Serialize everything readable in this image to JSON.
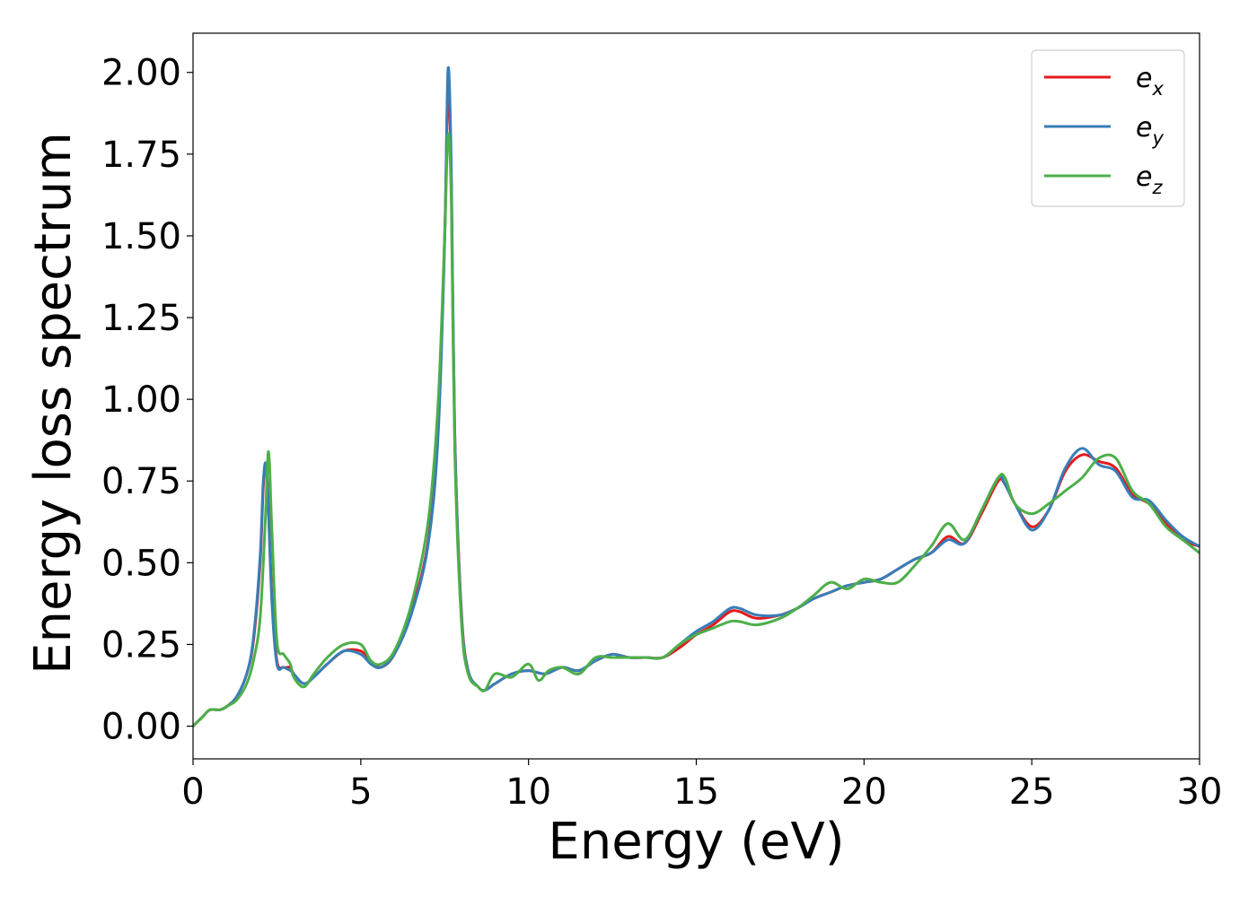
{
  "chart_data": {
    "type": "line",
    "title": "",
    "xlabel": "Energy (eV)",
    "ylabel": "Energy loss spectrum",
    "xlim": [
      0,
      30
    ],
    "ylim": [
      -0.1,
      2.12
    ],
    "xticks": [
      0,
      5,
      10,
      15,
      20,
      25,
      30
    ],
    "xtick_labels": [
      "0",
      "5",
      "10",
      "15",
      "20",
      "25",
      "30"
    ],
    "yticks": [
      0,
      0.25,
      0.5,
      0.75,
      1.0,
      1.25,
      1.5,
      1.75,
      2.0
    ],
    "ytick_labels": [
      "0.00",
      "0.25",
      "0.50",
      "0.75",
      "1.00",
      "1.25",
      "1.50",
      "1.75",
      "2.00"
    ],
    "grid": false,
    "legend_position": "upper right",
    "series": [
      {
        "name": "e_x",
        "label_base": "e",
        "label_sub": "x",
        "color": "#e41a1c",
        "x": [
          0,
          0.3,
          0.5,
          0.8,
          1.0,
          1.3,
          1.6,
          1.8,
          2.0,
          2.1,
          2.2,
          2.35,
          2.5,
          2.7,
          2.9,
          3.0,
          3.3,
          3.6,
          4.0,
          4.5,
          5.0,
          5.3,
          5.6,
          6.0,
          6.5,
          7.0,
          7.3,
          7.5,
          7.6,
          7.7,
          7.8,
          8.0,
          8.2,
          8.5,
          8.7,
          9.0,
          9.5,
          10.0,
          10.5,
          11.0,
          11.5,
          12.0,
          12.5,
          13.0,
          13.5,
          14.0,
          14.5,
          15.0,
          15.5,
          16.0,
          16.3,
          16.8,
          17.5,
          18.0,
          18.5,
          19.0,
          19.5,
          20.0,
          20.5,
          21.0,
          21.5,
          22.0,
          22.5,
          23.0,
          23.5,
          24.0,
          24.2,
          24.5,
          25.0,
          25.5,
          26.0,
          26.5,
          27.0,
          27.5,
          28.0,
          28.5,
          29.0,
          29.5,
          30.0
        ],
        "y": [
          0.0,
          0.03,
          0.05,
          0.05,
          0.06,
          0.09,
          0.16,
          0.26,
          0.5,
          0.74,
          0.78,
          0.4,
          0.2,
          0.18,
          0.18,
          0.16,
          0.13,
          0.15,
          0.19,
          0.23,
          0.23,
          0.2,
          0.18,
          0.22,
          0.35,
          0.56,
          0.9,
          1.5,
          1.95,
          1.65,
          0.9,
          0.35,
          0.17,
          0.12,
          0.11,
          0.13,
          0.16,
          0.17,
          0.16,
          0.18,
          0.17,
          0.2,
          0.22,
          0.21,
          0.21,
          0.21,
          0.24,
          0.28,
          0.31,
          0.35,
          0.35,
          0.33,
          0.34,
          0.36,
          0.39,
          0.41,
          0.43,
          0.44,
          0.45,
          0.48,
          0.51,
          0.53,
          0.58,
          0.56,
          0.65,
          0.75,
          0.74,
          0.68,
          0.61,
          0.66,
          0.78,
          0.83,
          0.81,
          0.79,
          0.71,
          0.68,
          0.62,
          0.57,
          0.55
        ]
      },
      {
        "name": "e_y",
        "label_base": "e",
        "label_sub": "y",
        "color": "#377eb8",
        "x": [
          0,
          0.3,
          0.5,
          0.8,
          1.0,
          1.3,
          1.6,
          1.8,
          2.0,
          2.1,
          2.2,
          2.35,
          2.5,
          2.7,
          2.9,
          3.0,
          3.3,
          3.6,
          4.0,
          4.5,
          5.0,
          5.3,
          5.6,
          6.0,
          6.5,
          7.0,
          7.3,
          7.5,
          7.6,
          7.7,
          7.8,
          8.0,
          8.2,
          8.5,
          8.7,
          9.0,
          9.5,
          10.0,
          10.5,
          11.0,
          11.5,
          12.0,
          12.5,
          13.0,
          13.5,
          14.0,
          14.5,
          15.0,
          15.5,
          16.0,
          16.3,
          16.8,
          17.5,
          18.0,
          18.5,
          19.0,
          19.5,
          20.0,
          20.5,
          21.0,
          21.5,
          22.0,
          22.5,
          23.0,
          23.5,
          24.0,
          24.2,
          24.5,
          25.0,
          25.5,
          26.0,
          26.5,
          27.0,
          27.5,
          28.0,
          28.5,
          29.0,
          29.5,
          30.0
        ],
        "y": [
          0.0,
          0.03,
          0.05,
          0.05,
          0.06,
          0.09,
          0.16,
          0.27,
          0.52,
          0.76,
          0.77,
          0.38,
          0.19,
          0.18,
          0.17,
          0.16,
          0.13,
          0.15,
          0.19,
          0.23,
          0.22,
          0.19,
          0.18,
          0.22,
          0.34,
          0.55,
          0.88,
          1.48,
          2.01,
          1.7,
          0.9,
          0.34,
          0.17,
          0.12,
          0.11,
          0.13,
          0.16,
          0.17,
          0.16,
          0.18,
          0.17,
          0.2,
          0.22,
          0.21,
          0.21,
          0.21,
          0.25,
          0.29,
          0.32,
          0.36,
          0.36,
          0.34,
          0.34,
          0.36,
          0.39,
          0.41,
          0.43,
          0.44,
          0.45,
          0.48,
          0.51,
          0.53,
          0.57,
          0.56,
          0.66,
          0.76,
          0.74,
          0.68,
          0.6,
          0.66,
          0.79,
          0.85,
          0.8,
          0.78,
          0.7,
          0.69,
          0.63,
          0.58,
          0.55
        ]
      },
      {
        "name": "e_z",
        "label_base": "e",
        "label_sub": "z",
        "color": "#4daf4a",
        "x": [
          0,
          0.3,
          0.5,
          0.8,
          1.0,
          1.3,
          1.6,
          1.8,
          2.0,
          2.15,
          2.25,
          2.35,
          2.5,
          2.7,
          2.9,
          3.0,
          3.3,
          3.6,
          4.0,
          4.5,
          5.0,
          5.3,
          5.6,
          6.0,
          6.5,
          7.0,
          7.3,
          7.5,
          7.6,
          7.7,
          7.8,
          8.0,
          8.2,
          8.5,
          8.7,
          9.0,
          9.5,
          10.0,
          10.3,
          10.6,
          11.0,
          11.5,
          12.0,
          12.5,
          13.0,
          13.5,
          14.0,
          14.5,
          15.0,
          15.5,
          16.0,
          16.3,
          16.8,
          17.5,
          18.0,
          18.5,
          19.0,
          19.5,
          20.0,
          20.5,
          21.0,
          21.5,
          22.0,
          22.5,
          23.0,
          23.5,
          24.0,
          24.2,
          24.5,
          25.0,
          25.5,
          26.0,
          26.5,
          27.0,
          27.5,
          28.0,
          28.5,
          29.0,
          29.5,
          30.0
        ],
        "y": [
          0.0,
          0.03,
          0.05,
          0.05,
          0.06,
          0.08,
          0.13,
          0.2,
          0.33,
          0.62,
          0.84,
          0.6,
          0.26,
          0.22,
          0.19,
          0.15,
          0.12,
          0.16,
          0.21,
          0.25,
          0.25,
          0.2,
          0.19,
          0.23,
          0.37,
          0.62,
          0.98,
          1.5,
          1.81,
          1.6,
          0.85,
          0.32,
          0.16,
          0.12,
          0.11,
          0.16,
          0.15,
          0.19,
          0.14,
          0.17,
          0.18,
          0.16,
          0.21,
          0.21,
          0.21,
          0.21,
          0.21,
          0.25,
          0.28,
          0.3,
          0.32,
          0.32,
          0.31,
          0.33,
          0.36,
          0.4,
          0.44,
          0.42,
          0.45,
          0.44,
          0.44,
          0.49,
          0.55,
          0.62,
          0.57,
          0.66,
          0.76,
          0.76,
          0.68,
          0.65,
          0.68,
          0.72,
          0.76,
          0.82,
          0.82,
          0.72,
          0.68,
          0.61,
          0.57,
          0.53
        ]
      }
    ]
  }
}
